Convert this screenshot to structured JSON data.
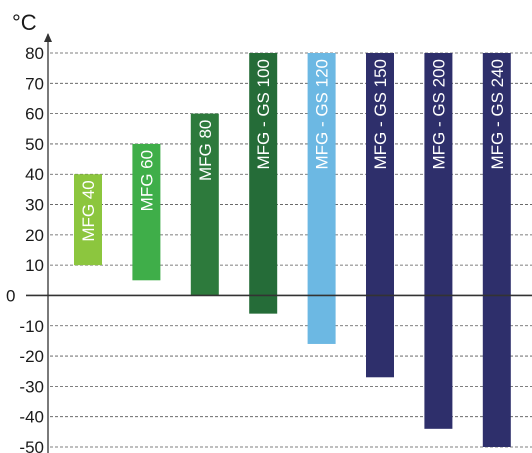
{
  "chart_data": {
    "type": "bar",
    "subtype": "floating-range",
    "y_unit": "°C",
    "ylim": [
      -50,
      80
    ],
    "y_ticks": [
      80,
      70,
      60,
      50,
      40,
      30,
      20,
      10,
      0,
      -10,
      -20,
      -30,
      -40,
      -50
    ],
    "grid": true,
    "categories": [
      "MFG 40",
      "MFG 60",
      "MFG 80",
      "MFG - GS 100",
      "MFG - GS 120",
      "MFG - GS 150",
      "MFG - GS 200",
      "MFG - GS 240"
    ],
    "series": [
      {
        "low": 10,
        "high": 40,
        "color": "#8cc63e"
      },
      {
        "low": 5,
        "high": 50,
        "color": "#3fae49"
      },
      {
        "low": 0,
        "high": 60,
        "color": "#2d7a3c"
      },
      {
        "low": -6,
        "high": 80,
        "color": "#256c38"
      },
      {
        "low": -16,
        "high": 80,
        "color": "#6cb8e3"
      },
      {
        "low": -27,
        "high": 80,
        "color": "#2e2f6b"
      },
      {
        "low": -44,
        "high": 80,
        "color": "#2e2f6b"
      },
      {
        "low": -50,
        "high": 80,
        "color": "#2e2f6b"
      }
    ]
  }
}
